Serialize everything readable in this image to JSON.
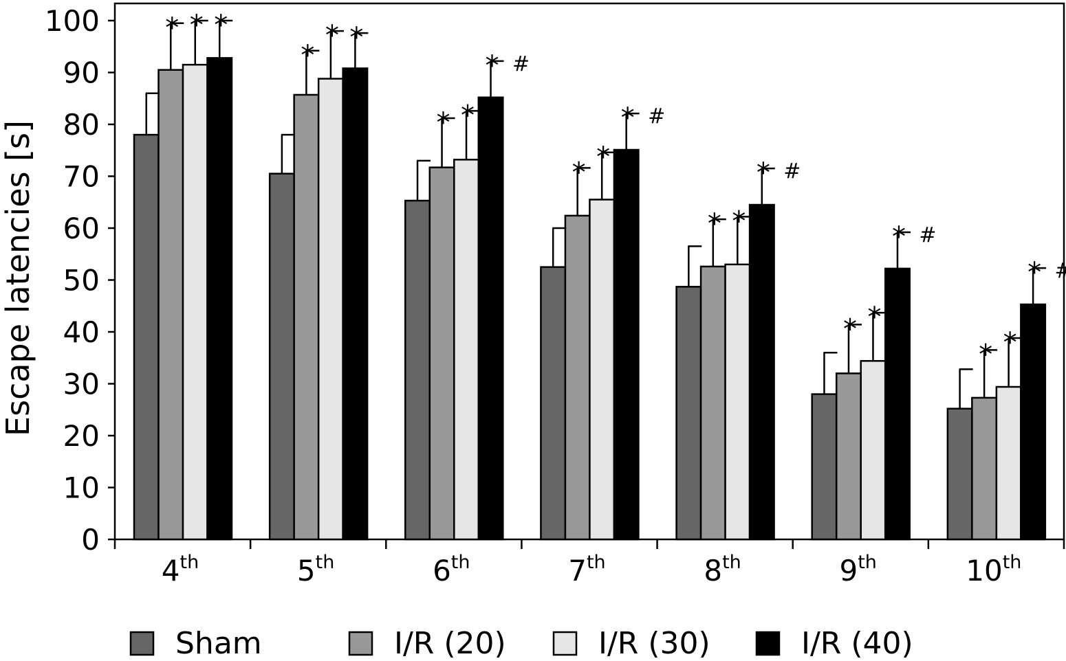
{
  "chart_data": {
    "type": "bar",
    "title": "",
    "xlabel": "",
    "ylabel": "Escape latencies [s]",
    "ylim": [
      0,
      100
    ],
    "yticks": [
      0,
      10,
      20,
      30,
      40,
      50,
      60,
      70,
      80,
      90,
      100
    ],
    "grid": false,
    "legend_position": "bottom",
    "categories": [
      {
        "num": "4",
        "sup": "th"
      },
      {
        "num": "5",
        "sup": "th"
      },
      {
        "num": "6",
        "sup": "th"
      },
      {
        "num": "7",
        "sup": "th"
      },
      {
        "num": "8",
        "sup": "th"
      },
      {
        "num": "9",
        "sup": "th"
      },
      {
        "num": "10",
        "sup": "th"
      }
    ],
    "series": [
      {
        "name": "Sham",
        "color": "#666666",
        "values": [
          78,
          70.5,
          65.3,
          52.5,
          48.7,
          28,
          25.2
        ],
        "errors": [
          8,
          7.5,
          7.7,
          7.5,
          7.8,
          8,
          7.6
        ],
        "star": [
          false,
          false,
          false,
          false,
          false,
          false,
          false
        ],
        "hash": [
          false,
          false,
          false,
          false,
          false,
          false,
          false
        ]
      },
      {
        "name": "I/R (20)",
        "color": "#999999",
        "values": [
          90.5,
          85.7,
          71.7,
          62.4,
          52.6,
          32,
          27.3
        ],
        "errors": [
          9,
          8.5,
          9.5,
          9.2,
          9.1,
          9.4,
          9.2
        ],
        "star": [
          true,
          true,
          true,
          true,
          true,
          true,
          true
        ],
        "hash": [
          false,
          false,
          false,
          false,
          false,
          false,
          false
        ]
      },
      {
        "name": "I/R (30)",
        "color": "#e6e6e6",
        "values": [
          91.5,
          88.8,
          73.2,
          65.5,
          53,
          34.4,
          29.4
        ],
        "errors": [
          8.5,
          9.2,
          9.4,
          9.1,
          9.2,
          9.3,
          9.4
        ],
        "star": [
          true,
          true,
          true,
          true,
          true,
          true,
          true
        ],
        "hash": [
          false,
          false,
          false,
          false,
          false,
          false,
          false
        ]
      },
      {
        "name": "I/R (40)",
        "color": "#000000",
        "values": [
          92.8,
          90.8,
          85.2,
          75.1,
          64.5,
          52.2,
          45.3
        ],
        "errors": [
          7.2,
          6.8,
          7,
          7,
          7,
          7,
          7
        ],
        "star": [
          true,
          true,
          true,
          true,
          true,
          true,
          true
        ],
        "hash": [
          false,
          false,
          true,
          true,
          true,
          true,
          true
        ]
      }
    ],
    "annotations": {
      "star": "*",
      "hash": "#"
    }
  }
}
